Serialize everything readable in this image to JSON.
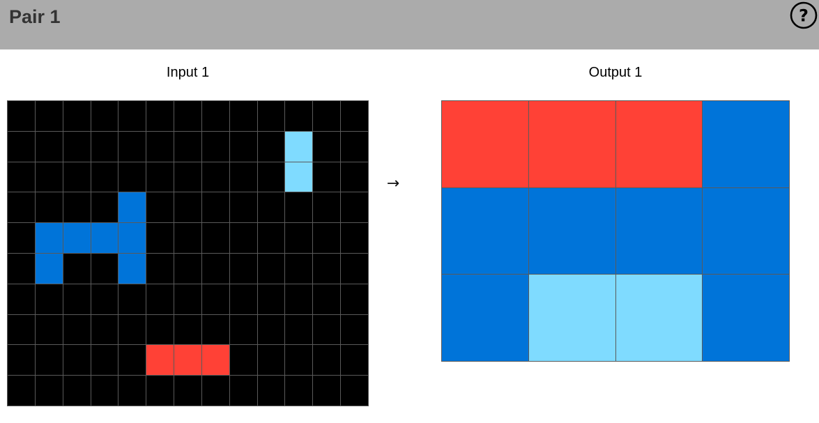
{
  "header": {
    "title": "Pair 1",
    "help_icon": "question-circle-icon"
  },
  "palette": {
    "0": "#000000",
    "1": "#0074d9",
    "2": "#ff4136",
    "8": "#7fdbff"
  },
  "input": {
    "label": "Input 1",
    "rows": 10,
    "cols": 13,
    "cells": [
      [
        0,
        0,
        0,
        0,
        0,
        0,
        0,
        0,
        0,
        0,
        0,
        0,
        0
      ],
      [
        0,
        0,
        0,
        0,
        0,
        0,
        0,
        0,
        0,
        0,
        8,
        0,
        0
      ],
      [
        0,
        0,
        0,
        0,
        0,
        0,
        0,
        0,
        0,
        0,
        8,
        0,
        0
      ],
      [
        0,
        0,
        0,
        0,
        1,
        0,
        0,
        0,
        0,
        0,
        0,
        0,
        0
      ],
      [
        0,
        1,
        1,
        1,
        1,
        0,
        0,
        0,
        0,
        0,
        0,
        0,
        0
      ],
      [
        0,
        1,
        0,
        0,
        1,
        0,
        0,
        0,
        0,
        0,
        0,
        0,
        0
      ],
      [
        0,
        0,
        0,
        0,
        0,
        0,
        0,
        0,
        0,
        0,
        0,
        0,
        0
      ],
      [
        0,
        0,
        0,
        0,
        0,
        0,
        0,
        0,
        0,
        0,
        0,
        0,
        0
      ],
      [
        0,
        0,
        0,
        0,
        0,
        2,
        2,
        2,
        0,
        0,
        0,
        0,
        0
      ],
      [
        0,
        0,
        0,
        0,
        0,
        0,
        0,
        0,
        0,
        0,
        0,
        0,
        0
      ]
    ]
  },
  "arrow": "→",
  "output": {
    "label": "Output 1",
    "rows": 3,
    "cols": 4,
    "cells": [
      [
        2,
        2,
        2,
        1
      ],
      [
        1,
        1,
        1,
        1
      ],
      [
        1,
        8,
        8,
        1
      ]
    ]
  }
}
